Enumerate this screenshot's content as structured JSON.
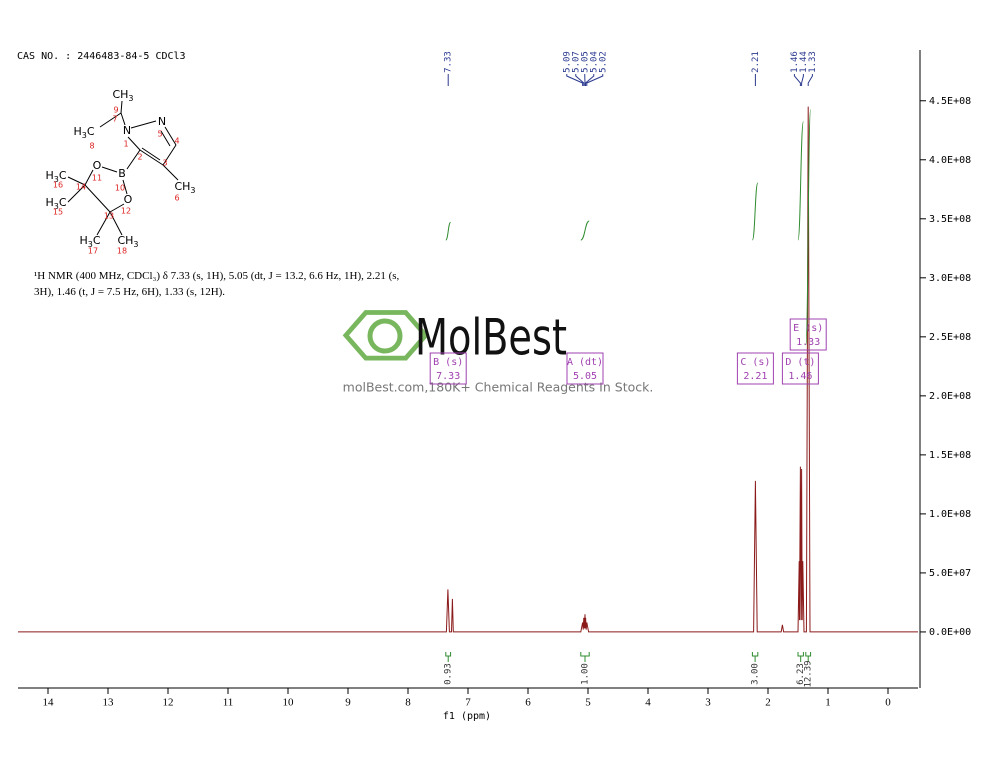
{
  "header": {
    "cas": "CAS NO. : 2446483-84-5 CDCl3"
  },
  "structure": {
    "atoms": [
      [
        "CH",
        "3"
      ],
      [
        "H",
        "3",
        "C"
      ],
      [
        "N"
      ],
      [
        "N"
      ],
      [
        "CH",
        "3"
      ],
      [
        "B"
      ],
      [
        "O"
      ],
      [
        "O"
      ],
      [
        "H",
        "3",
        "C"
      ],
      [
        "H",
        "3",
        "C"
      ],
      [
        "H",
        "3",
        "C"
      ],
      [
        "CH",
        "3"
      ]
    ],
    "locants": [
      "9",
      "7",
      "8",
      "1",
      "5",
      "4",
      "2",
      "3",
      "6",
      "10",
      "11",
      "12",
      "16",
      "14",
      "15",
      "13",
      "17",
      "18"
    ]
  },
  "nmr_text": "¹H NMR (400 MHz, CDCl₃) δ 7.33 (s, 1H), 5.05 (dt, J = 13.2, 6.6 Hz, 1H), 2.21 (s, 3H), 1.46 (t, J = 7.5 Hz, 6H), 1.33 (s, 12H).",
  "watermark": {
    "brand": "MolBest",
    "tagline": "molBest.com,180K+ Chemical Reagents In Stock."
  },
  "chart_data": {
    "type": "nmr",
    "xlabel": "f1 (ppm)",
    "xlim": [
      14.5,
      -0.5
    ],
    "xticks": [
      14,
      13,
      12,
      11,
      10,
      9,
      8,
      7,
      6,
      5,
      4,
      3,
      2,
      1,
      0
    ],
    "ylim": [
      -47500000,
      493000000
    ],
    "yticks": [
      {
        "value": 0,
        "label": "0.0E+00"
      },
      {
        "value": 50000000,
        "label": "5.0E+07"
      },
      {
        "value": 100000000,
        "label": "1.0E+08"
      },
      {
        "value": 150000000,
        "label": "1.5E+08"
      },
      {
        "value": 200000000,
        "label": "2.0E+08"
      },
      {
        "value": 250000000,
        "label": "2.5E+08"
      },
      {
        "value": 300000000,
        "label": "3.0E+08"
      },
      {
        "value": 350000000,
        "label": "3.5E+08"
      },
      {
        "value": 400000000,
        "label": "4.0E+08"
      },
      {
        "value": 450000000,
        "label": "4.5E+08"
      }
    ],
    "color": "#8b1a1a",
    "spectrum": {
      "x": [
        14.5,
        7.36,
        7.335,
        7.31,
        7.275,
        7.26,
        7.245,
        5.12,
        5.09,
        5.08,
        5.07,
        5.06,
        5.05,
        5.045,
        5.04,
        5.03,
        5.02,
        4.99,
        2.24,
        2.21,
        2.18,
        1.78,
        1.76,
        1.74,
        1.5,
        1.48,
        1.475,
        1.46,
        1.45,
        1.44,
        1.43,
        1.42,
        1.4,
        1.36,
        1.33,
        1.3,
        -0.5
      ],
      "values": [
        0,
        0,
        36000000,
        0,
        0,
        28000000,
        0,
        0,
        8000000,
        2000000,
        12000000,
        3000000,
        15000000,
        3000000,
        12000000,
        2000000,
        8000000,
        0,
        0,
        128000000,
        0,
        0,
        6000000,
        0,
        0,
        60000000,
        10000000,
        140000000,
        10000000,
        138000000,
        10000000,
        60000000,
        0,
        0,
        445000000,
        0,
        0
      ]
    },
    "peak_labels": [
      7.33,
      5.09,
      5.07,
      5.05,
      5.04,
      5.02,
      2.21,
      1.46,
      1.44,
      1.33
    ],
    "peak_label_color": "#2b3a8f",
    "multiplets": [
      {
        "name": "B (s)",
        "shift": 7.33
      },
      {
        "name": "A (dt)",
        "shift": 5.05
      },
      {
        "name": "C (s)",
        "shift": 2.21
      },
      {
        "name": "D (t)",
        "shift": 1.46
      },
      {
        "name": "E (s)",
        "shift": 1.33
      }
    ],
    "multiplet_color": "#a040b0",
    "integrals": {
      "ranges": [
        [
          7.37,
          7.29
        ],
        [
          5.12,
          4.98
        ],
        [
          2.26,
          2.17
        ],
        [
          1.5,
          1.41
        ],
        [
          1.37,
          1.29
        ]
      ],
      "values": [
        0.93,
        1,
        3,
        6.23,
        12.39
      ],
      "value_labels": [
        "0.93",
        "1.00",
        "3.00",
        "6.23",
        "12.39"
      ]
    },
    "integral_color": "#2e8b2e"
  }
}
